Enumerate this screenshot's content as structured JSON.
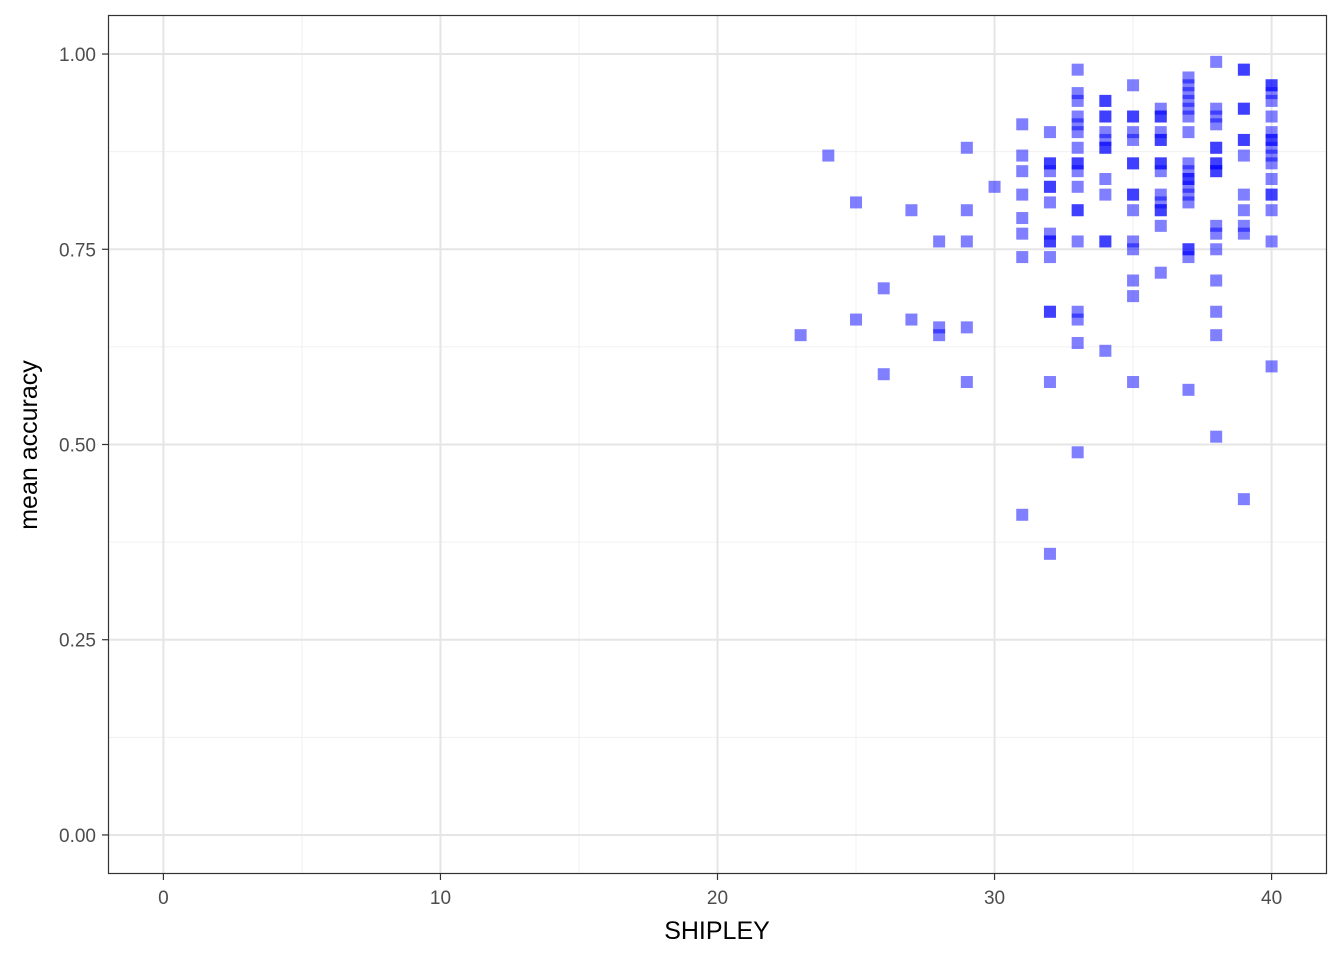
{
  "chart_data": {
    "type": "scatter",
    "title": "",
    "xlabel": "SHIPLEY",
    "ylabel": "mean accuracy",
    "xlim": [
      -2,
      42
    ],
    "ylim": [
      -0.05,
      1.05
    ],
    "x_ticks": [
      0,
      10,
      20,
      30,
      40
    ],
    "x_tick_labels": [
      "0",
      "10",
      "20",
      "30",
      "40"
    ],
    "y_ticks": [
      0,
      0.25,
      0.5,
      0.75,
      1.0
    ],
    "y_tick_labels": [
      "0.00",
      "0.25",
      "0.50",
      "0.75",
      "1.00"
    ],
    "grid": true,
    "legend": "none",
    "marker": "square",
    "point_color": "#0000FF",
    "point_opacity": 0.5,
    "points": [
      [
        23,
        0.64
      ],
      [
        24,
        0.87
      ],
      [
        25,
        0.81
      ],
      [
        25,
        0.66
      ],
      [
        26,
        0.7
      ],
      [
        26,
        0.59
      ],
      [
        27,
        0.8
      ],
      [
        27,
        0.66
      ],
      [
        28,
        0.76
      ],
      [
        28,
        0.65
      ],
      [
        28,
        0.64
      ],
      [
        29,
        0.88
      ],
      [
        29,
        0.8
      ],
      [
        29,
        0.76
      ],
      [
        29,
        0.65
      ],
      [
        29,
        0.58
      ],
      [
        30,
        0.83
      ],
      [
        31,
        0.91
      ],
      [
        31,
        0.87
      ],
      [
        31,
        0.85
      ],
      [
        31,
        0.82
      ],
      [
        31,
        0.79
      ],
      [
        31,
        0.77
      ],
      [
        31,
        0.74
      ],
      [
        31,
        0.41
      ],
      [
        32,
        0.9
      ],
      [
        32,
        0.86
      ],
      [
        32,
        0.86
      ],
      [
        32,
        0.85
      ],
      [
        32,
        0.83
      ],
      [
        32,
        0.83
      ],
      [
        32,
        0.81
      ],
      [
        32,
        0.77
      ],
      [
        32,
        0.76
      ],
      [
        32,
        0.76
      ],
      [
        32,
        0.74
      ],
      [
        32,
        0.67
      ],
      [
        32,
        0.67
      ],
      [
        32,
        0.58
      ],
      [
        32,
        0.36
      ],
      [
        33,
        0.98
      ],
      [
        33,
        0.95
      ],
      [
        33,
        0.94
      ],
      [
        33,
        0.92
      ],
      [
        33,
        0.91
      ],
      [
        33,
        0.9
      ],
      [
        33,
        0.88
      ],
      [
        33,
        0.86
      ],
      [
        33,
        0.86
      ],
      [
        33,
        0.85
      ],
      [
        33,
        0.83
      ],
      [
        33,
        0.8
      ],
      [
        33,
        0.8
      ],
      [
        33,
        0.76
      ],
      [
        33,
        0.67
      ],
      [
        33,
        0.66
      ],
      [
        33,
        0.63
      ],
      [
        33,
        0.49
      ],
      [
        34,
        0.94
      ],
      [
        34,
        0.94
      ],
      [
        34,
        0.92
      ],
      [
        34,
        0.92
      ],
      [
        34,
        0.9
      ],
      [
        34,
        0.89
      ],
      [
        34,
        0.88
      ],
      [
        34,
        0.88
      ],
      [
        34,
        0.84
      ],
      [
        34,
        0.82
      ],
      [
        34,
        0.76
      ],
      [
        34,
        0.76
      ],
      [
        34,
        0.62
      ],
      [
        35,
        0.96
      ],
      [
        35,
        0.92
      ],
      [
        35,
        0.92
      ],
      [
        35,
        0.9
      ],
      [
        35,
        0.89
      ],
      [
        35,
        0.86
      ],
      [
        35,
        0.86
      ],
      [
        35,
        0.82
      ],
      [
        35,
        0.82
      ],
      [
        35,
        0.8
      ],
      [
        35,
        0.76
      ],
      [
        35,
        0.75
      ],
      [
        35,
        0.71
      ],
      [
        35,
        0.69
      ],
      [
        35,
        0.58
      ],
      [
        36,
        0.93
      ],
      [
        36,
        0.92
      ],
      [
        36,
        0.92
      ],
      [
        36,
        0.9
      ],
      [
        36,
        0.89
      ],
      [
        36,
        0.89
      ],
      [
        36,
        0.86
      ],
      [
        36,
        0.86
      ],
      [
        36,
        0.85
      ],
      [
        36,
        0.82
      ],
      [
        36,
        0.81
      ],
      [
        36,
        0.8
      ],
      [
        36,
        0.8
      ],
      [
        36,
        0.78
      ],
      [
        36,
        0.72
      ],
      [
        37,
        0.97
      ],
      [
        37,
        0.96
      ],
      [
        37,
        0.95
      ],
      [
        37,
        0.94
      ],
      [
        37,
        0.93
      ],
      [
        37,
        0.92
      ],
      [
        37,
        0.9
      ],
      [
        37,
        0.86
      ],
      [
        37,
        0.85
      ],
      [
        37,
        0.84
      ],
      [
        37,
        0.84
      ],
      [
        37,
        0.83
      ],
      [
        37,
        0.82
      ],
      [
        37,
        0.81
      ],
      [
        37,
        0.75
      ],
      [
        37,
        0.75
      ],
      [
        37,
        0.74
      ],
      [
        37,
        0.57
      ],
      [
        38,
        0.99
      ],
      [
        38,
        0.93
      ],
      [
        38,
        0.92
      ],
      [
        38,
        0.91
      ],
      [
        38,
        0.88
      ],
      [
        38,
        0.88
      ],
      [
        38,
        0.86
      ],
      [
        38,
        0.86
      ],
      [
        38,
        0.85
      ],
      [
        38,
        0.85
      ],
      [
        38,
        0.78
      ],
      [
        38,
        0.77
      ],
      [
        38,
        0.75
      ],
      [
        38,
        0.71
      ],
      [
        38,
        0.67
      ],
      [
        38,
        0.64
      ],
      [
        38,
        0.51
      ],
      [
        39,
        0.98
      ],
      [
        39,
        0.98
      ],
      [
        39,
        0.93
      ],
      [
        39,
        0.93
      ],
      [
        39,
        0.89
      ],
      [
        39,
        0.89
      ],
      [
        39,
        0.87
      ],
      [
        39,
        0.82
      ],
      [
        39,
        0.8
      ],
      [
        39,
        0.78
      ],
      [
        39,
        0.77
      ],
      [
        39,
        0.43
      ],
      [
        40,
        0.96
      ],
      [
        40,
        0.96
      ],
      [
        40,
        0.95
      ],
      [
        40,
        0.94
      ],
      [
        40,
        0.92
      ],
      [
        40,
        0.9
      ],
      [
        40,
        0.89
      ],
      [
        40,
        0.89
      ],
      [
        40,
        0.88
      ],
      [
        40,
        0.87
      ],
      [
        40,
        0.86
      ],
      [
        40,
        0.84
      ],
      [
        40,
        0.82
      ],
      [
        40,
        0.82
      ],
      [
        40,
        0.8
      ],
      [
        40,
        0.76
      ],
      [
        40,
        0.6
      ]
    ]
  }
}
